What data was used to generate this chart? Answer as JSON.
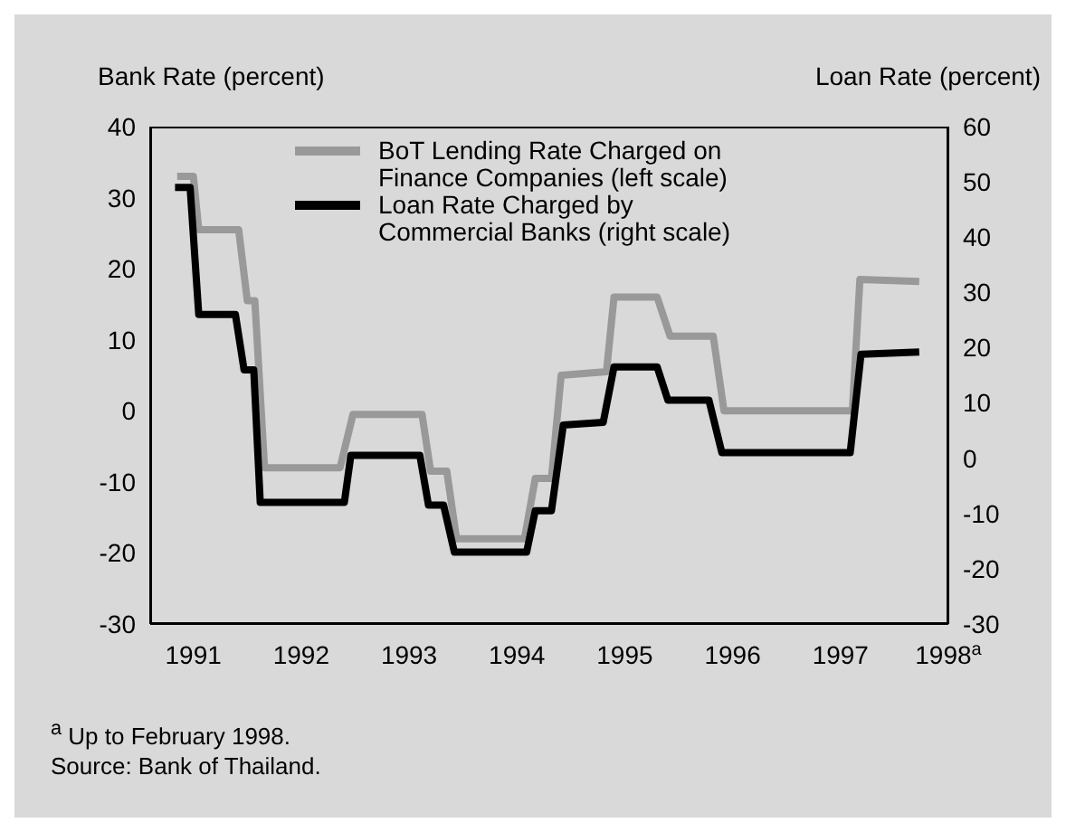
{
  "chart_data": {
    "type": "line",
    "ylabel": "Bank Rate (percent)",
    "y2label": "Loan Rate (percent)",
    "xlim": [
      1990.6,
      1998.0
    ],
    "xticks": [
      1991,
      1992,
      1993,
      1994,
      1995,
      1996,
      1997,
      {
        "value": 1998,
        "label": "1998$^{a}$"
      }
    ],
    "ylim": [
      -30,
      40
    ],
    "yticks": [
      -30,
      -20,
      -10,
      0,
      10,
      20,
      30,
      40
    ],
    "y2lim": [
      -30,
      60
    ],
    "y2ticks": [
      -30,
      -20,
      -10,
      0,
      10,
      20,
      30,
      40,
      50,
      60
    ],
    "legend": "top",
    "marker": "none",
    "line_style": "solid",
    "series": [
      {
        "name": "BoT Lending Rate Charged on Finance Companies (left scale)",
        "color": "#999999",
        "axis": "y",
        "x": [
          1990.85,
          1991.0,
          1991.05,
          1991.42,
          1991.5,
          1991.57,
          1991.66,
          1992.36,
          1992.48,
          1993.12,
          1993.2,
          1993.35,
          1993.44,
          1994.07,
          1994.17,
          1994.32,
          1994.41,
          1994.83,
          1994.9,
          1995.3,
          1995.42,
          1995.82,
          1995.92,
          1997.11,
          1997.18,
          1997.73
        ],
        "values": [
          33,
          33,
          25.5,
          25.5,
          15.5,
          15.5,
          -8,
          -8,
          -0.5,
          -0.5,
          -8.5,
          -8.5,
          -18,
          -18,
          -9.5,
          -9.5,
          5,
          5.5,
          16,
          16,
          10.5,
          10.5,
          0,
          0,
          18.5,
          18.2
        ]
      },
      {
        "name": "Loan Rate Charged by Commercial Banks (right scale)",
        "color": "#000000",
        "axis": "y2",
        "x": [
          1990.83,
          1990.97,
          1991.05,
          1991.39,
          1991.47,
          1991.56,
          1991.62,
          1992.4,
          1992.46,
          1993.1,
          1993.18,
          1993.32,
          1993.42,
          1994.09,
          1994.17,
          1994.32,
          1994.43,
          1994.8,
          1994.9,
          1995.3,
          1995.4,
          1995.78,
          1995.9,
          1997.09,
          1997.19,
          1997.73
        ],
        "values": [
          49,
          49,
          26,
          26,
          16,
          16,
          -8,
          -8,
          0.5,
          0.5,
          -8.5,
          -8.5,
          -17,
          -17,
          -9.5,
          -9.5,
          6,
          6.5,
          16.5,
          16.5,
          10.5,
          10.5,
          1,
          1,
          18.8,
          19.2
        ]
      }
    ],
    "annotations": [
      "$^{a}$ Up to February 1998.",
      "Source: Bank of Thailand."
    ]
  }
}
